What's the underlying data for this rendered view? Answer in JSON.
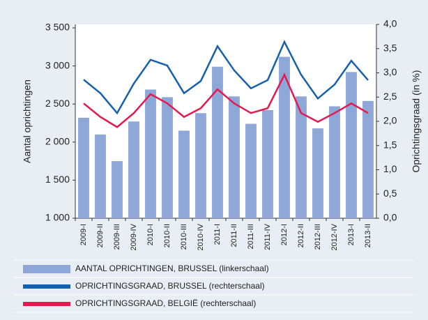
{
  "chart_data": {
    "type": "bar_line",
    "y_label": "Aantal oprichtingen",
    "y2_label": "Oprichtingsgraad (in %)",
    "categories": [
      "2009-I",
      "2009-II",
      "2009-III",
      "2009-IV",
      "2010-I",
      "2010-II",
      "2010-III",
      "2010-IV",
      "2011-I",
      "2011-II",
      "2011-III",
      "2011-IV",
      "2012-I",
      "2012-II",
      "2012-III",
      "2012-IV",
      "2013-I",
      "2013-II"
    ],
    "series": [
      {
        "name": "AANTAL OPRICHTINGEN, BRUSSEL (linkerschaal)",
        "type": "bar",
        "color": "#8ea7d9",
        "values": [
          2320,
          2100,
          1750,
          2270,
          2690,
          2590,
          2150,
          2380,
          2990,
          2600,
          2240,
          2420,
          3120,
          2600,
          2180,
          2470,
          2920,
          2540
        ]
      },
      {
        "name": "OPRICHTINGSGRAAD, BRUSSEL (rechterschaal)",
        "type": "line",
        "axis": "y2",
        "color": "#1560ad",
        "values": [
          2.86,
          2.58,
          2.17,
          2.78,
          3.27,
          3.15,
          2.58,
          2.83,
          3.55,
          3.05,
          2.68,
          2.85,
          3.64,
          2.96,
          2.47,
          2.76,
          3.25,
          2.85
        ]
      },
      {
        "name": "OPRICHTINGSGRAAD, BELGIË (rechterschaal)",
        "type": "line",
        "axis": "y2",
        "color": "#e5194b",
        "values": [
          2.37,
          2.09,
          1.88,
          2.17,
          2.56,
          2.37,
          2.09,
          2.27,
          2.66,
          2.37,
          2.17,
          2.27,
          2.96,
          2.17,
          1.99,
          2.17,
          2.37,
          2.17
        ]
      }
    ],
    "ylim": [
      1000,
      3500
    ],
    "yticks": [
      {
        "value": 1000,
        "label": "1 000"
      },
      {
        "value": 1500,
        "label": "1 500"
      },
      {
        "value": 2000,
        "label": "2 000"
      },
      {
        "value": 2500,
        "label": "2 500"
      },
      {
        "value": 3000,
        "label": "3 000"
      },
      {
        "value": 3500,
        "label": "3 500"
      }
    ],
    "y2lim": [
      0,
      4
    ],
    "y2ticks": [
      {
        "value": 0,
        "label": "0,0"
      },
      {
        "value": 0.5,
        "label": "0,5"
      },
      {
        "value": 1,
        "label": "1,0"
      },
      {
        "value": 1.5,
        "label": "1,5"
      },
      {
        "value": 2,
        "label": "2,0"
      },
      {
        "value": 2.5,
        "label": "2,5"
      },
      {
        "value": 3,
        "label": "3,0"
      },
      {
        "value": 3.5,
        "label": "3,5"
      },
      {
        "value": 4,
        "label": "4,0"
      }
    ]
  }
}
